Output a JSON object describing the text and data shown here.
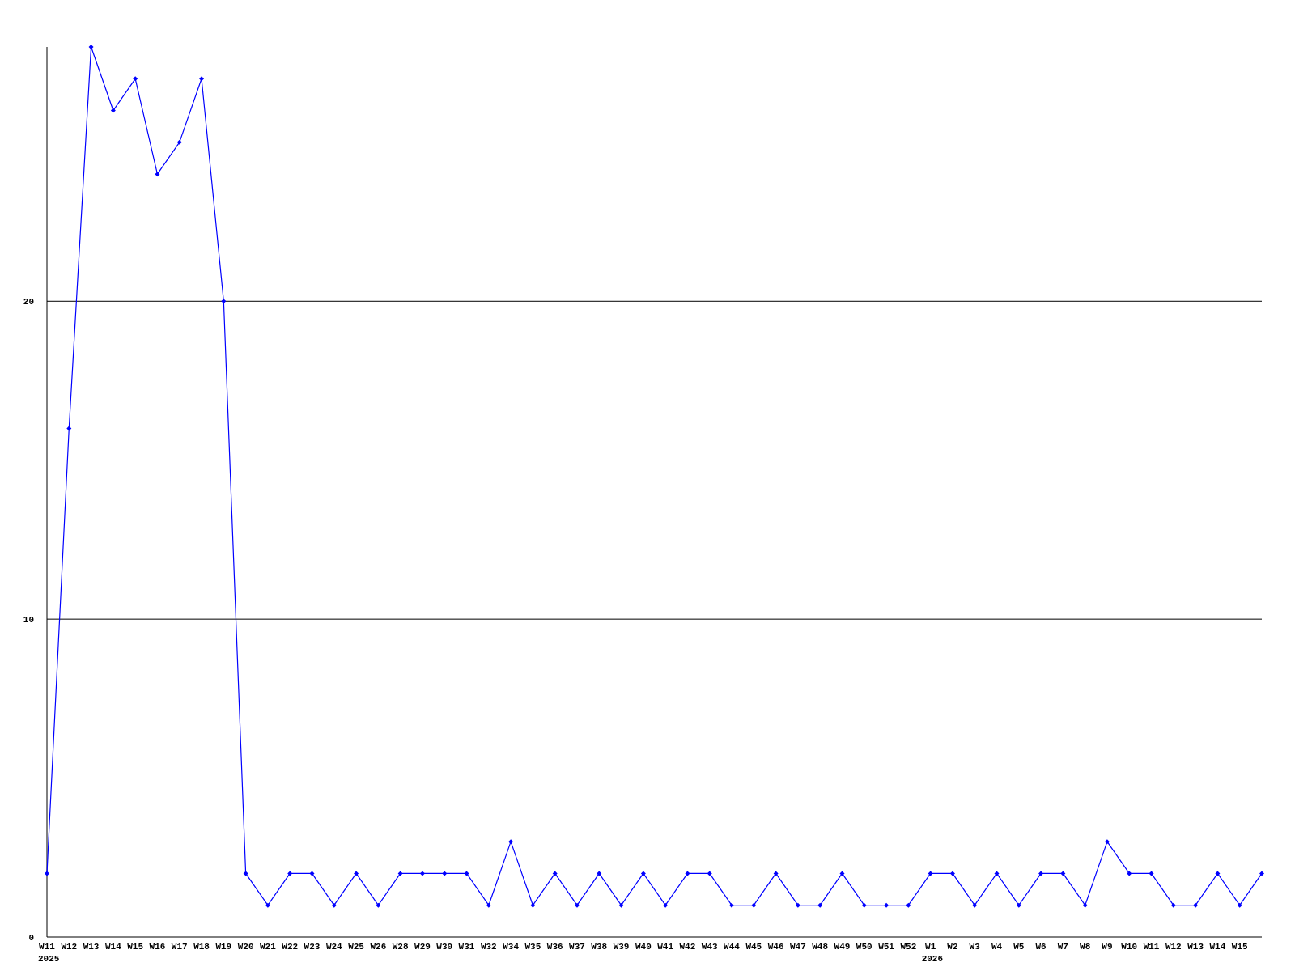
{
  "chart_data": {
    "type": "line",
    "categories": [
      "W11",
      "W12",
      "W13",
      "W14",
      "W15",
      "W16",
      "W17",
      "W18",
      "W19",
      "W20",
      "W21",
      "W22",
      "W23",
      "W24",
      "W25",
      "W26",
      "W28",
      "W29",
      "W30",
      "W31",
      "W32",
      "W34",
      "W35",
      "W36",
      "W37",
      "W38",
      "W39",
      "W40",
      "W41",
      "W42",
      "W43",
      "W44",
      "W45",
      "W46",
      "W47",
      "W48",
      "W49",
      "W50",
      "W51",
      "W52",
      "W1",
      "W2",
      "W3",
      "W4",
      "W5",
      "W6",
      "W7",
      "W8",
      "W9",
      "W10",
      "W11",
      "W12",
      "W13",
      "W14",
      "W15",
      null
    ],
    "series": [
      {
        "color": "#0000ff",
        "values": [
          2,
          16,
          28,
          26,
          27,
          24,
          25,
          27,
          20,
          2,
          1,
          2,
          2,
          1,
          2,
          1,
          2,
          2,
          2,
          2,
          1,
          3,
          1,
          2,
          1,
          2,
          1,
          2,
          1,
          2,
          2,
          1,
          1,
          2,
          1,
          1,
          2,
          1,
          1,
          1,
          2,
          2,
          1,
          2,
          1,
          2,
          2,
          1,
          3,
          2,
          2,
          1,
          1,
          2,
          1,
          2
        ]
      }
    ],
    "ylim": [
      0,
      28
    ],
    "yticks": [
      0,
      10,
      20
    ],
    "grid": "y",
    "marker": "diamond",
    "line_style": "solid",
    "annotations": [
      "2025",
      "2026"
    ]
  }
}
